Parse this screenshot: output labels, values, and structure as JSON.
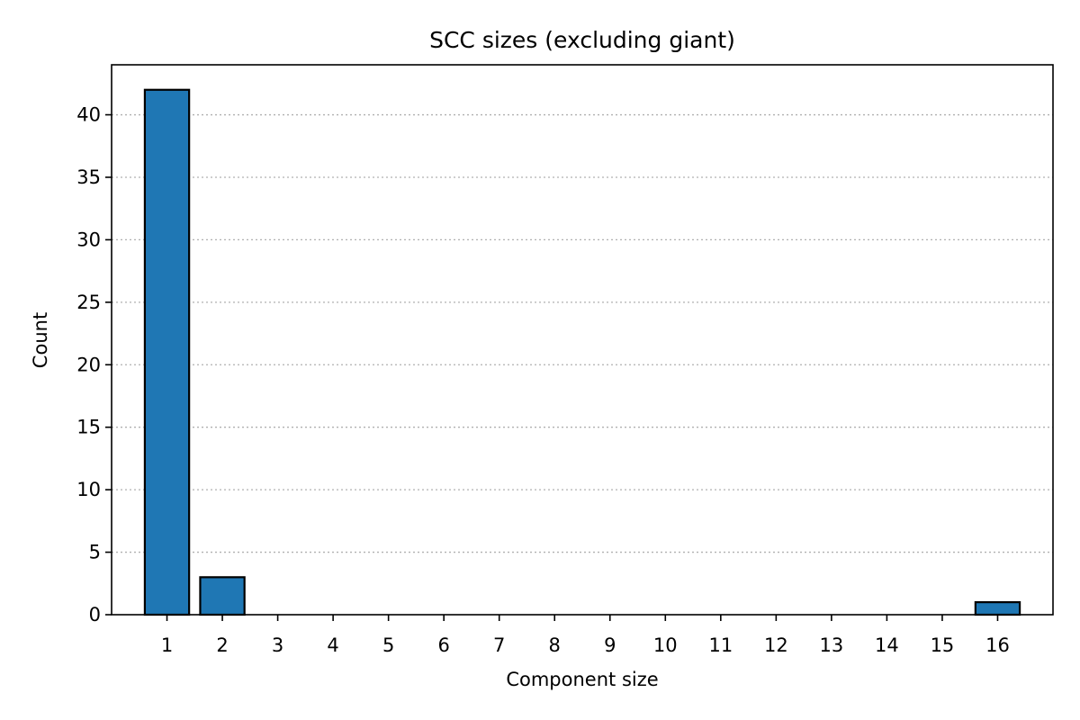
{
  "chart_data": {
    "type": "bar",
    "title": "SCC sizes (excluding giant)",
    "xlabel": "Component size",
    "ylabel": "Count",
    "categories": [
      "1",
      "2",
      "3",
      "4",
      "5",
      "6",
      "7",
      "8",
      "9",
      "10",
      "11",
      "12",
      "13",
      "14",
      "15",
      "16"
    ],
    "values": [
      42,
      3,
      0,
      0,
      0,
      0,
      0,
      0,
      0,
      0,
      0,
      0,
      0,
      0,
      0,
      1
    ],
    "ylim": [
      0,
      44
    ],
    "xlim": [
      0,
      17
    ],
    "yticks": [
      0,
      5,
      10,
      15,
      20,
      25,
      30,
      35,
      40
    ],
    "grid": "y-dotted",
    "bar_color": "#1f77b4",
    "bar_edge_color": "#000000"
  }
}
